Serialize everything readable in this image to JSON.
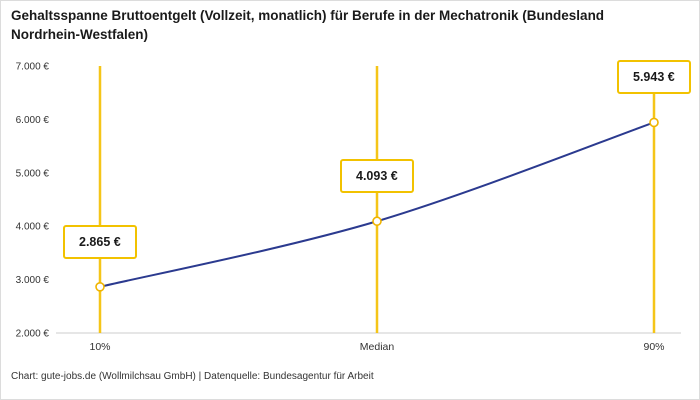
{
  "title": "Gehaltsspanne Bruttoentgelt (Vollzeit, monatlich) für Berufe in der Mechatronik (Bundesland Nordrhein-Westfalen)",
  "footer": "Chart: gute-jobs.de (Wollmilchsau GmbH) | Datenquelle: Bundesagentur für Arbeit",
  "chart_data": {
    "type": "line",
    "title": "Gehaltsspanne Bruttoentgelt (Vollzeit, monatlich) für Berufe in der Mechatronik (Bundesland Nordrhein-Westfalen)",
    "categories": [
      "10%",
      "Median",
      "90%"
    ],
    "values": [
      2865,
      4093,
      5943
    ],
    "value_labels": [
      "2.865 €",
      "4.093 €",
      "5.943 €"
    ],
    "ylim": [
      2000,
      7000
    ],
    "y_ticks": [
      2000,
      3000,
      4000,
      5000,
      6000,
      7000
    ],
    "y_tick_labels": [
      "2.000 €",
      "3.000 €",
      "4.000 €",
      "5.000 €",
      "6.000 €",
      "7.000 €"
    ],
    "xlabel": "",
    "ylabel": "",
    "grid": false,
    "legend": false,
    "colors": {
      "line": "#2b3a8f",
      "reference_line": "#f5c518",
      "marker_stroke": "#f0b400",
      "label_border": "#f2c200",
      "axis": "#cccccc",
      "tick_text": "#333333"
    }
  }
}
